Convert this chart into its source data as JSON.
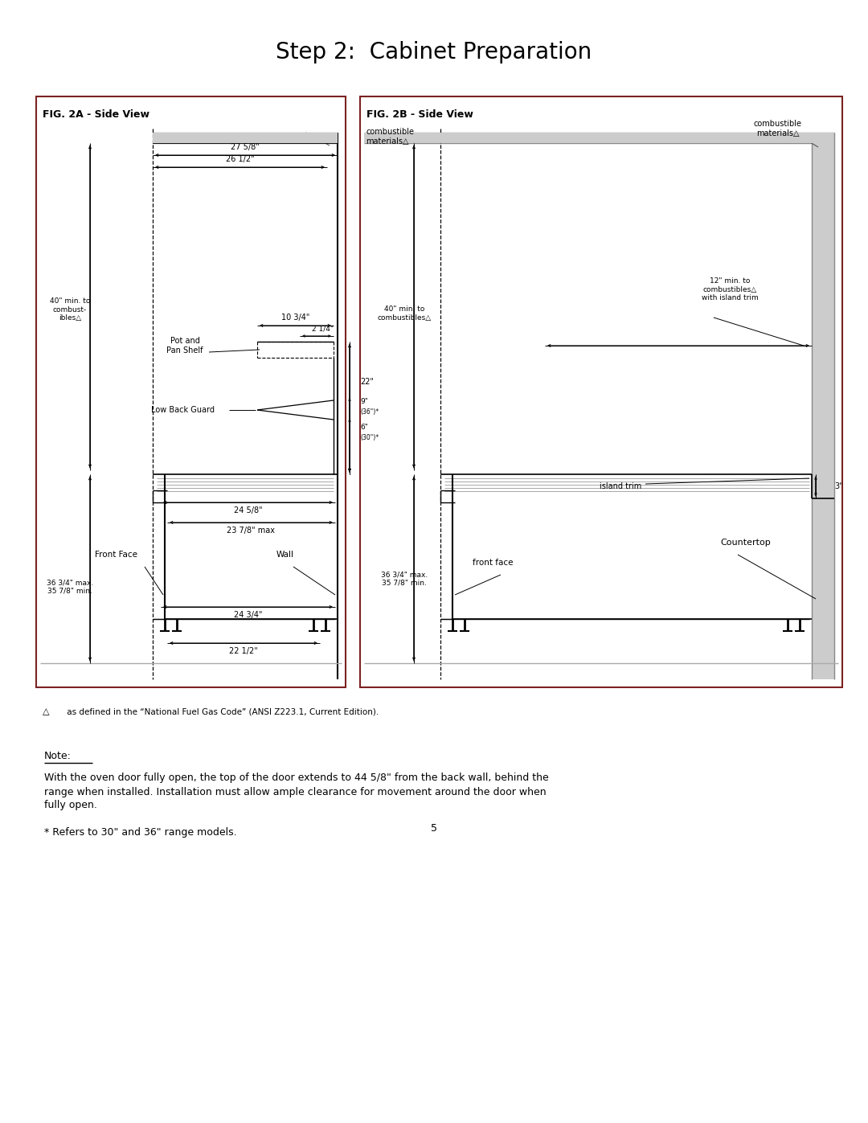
{
  "title": "Step 2:  Cabinet Preparation",
  "fig2a_title": "FIG. 2A - Side View",
  "fig2b_title": "FIG. 2B - Side View",
  "footnote_triangle": "△",
  "footnote_text": " as defined in the “National Fuel Gas Code” (ANSI Z223.1, Current Edition).",
  "note_title": "Note:",
  "note_line1": "With the oven door fully open, the top of the door extends to 44 5/8\" from the back wall, behind the",
  "note_line2": "range when installed. Installation must allow ample clearance for movement around the door when",
  "note_line3": "fully open.",
  "footnote2": "* Refers to 30\" and 36\" range models.",
  "page_number": "5",
  "bg_color": "#ffffff",
  "border_color": "#7B2222",
  "dark_gray": "#555555",
  "med_gray": "#888888",
  "light_gray": "#bbbbbb"
}
